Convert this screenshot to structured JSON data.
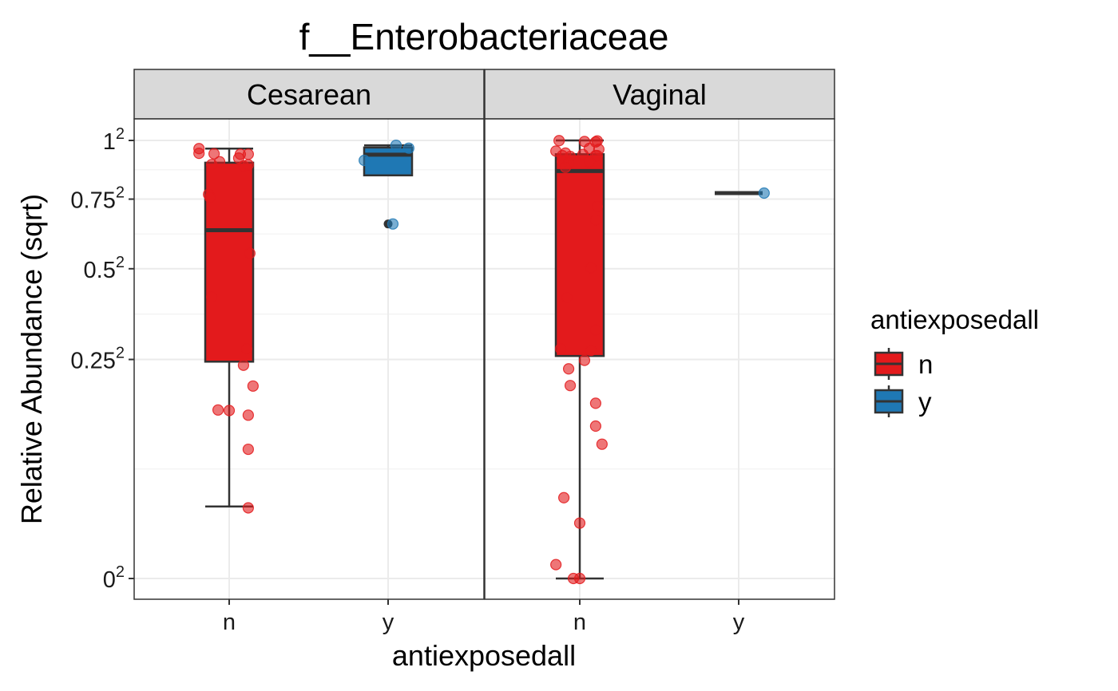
{
  "chart_data": {
    "type": "box",
    "title": "f__Enterobacteriaceae",
    "xlabel": "antiexposedall",
    "ylabel": "Relative Abundance (sqrt)",
    "y_scale": "sqrt",
    "y_ticks": [
      {
        "value": 0,
        "base": "0",
        "exp": "2"
      },
      {
        "value": 0.25,
        "base": "0.25",
        "exp": "2"
      },
      {
        "value": 0.5,
        "base": "0.5",
        "exp": "2"
      },
      {
        "value": 0.75,
        "base": "0.75",
        "exp": "2"
      },
      {
        "value": 1,
        "base": "1",
        "exp": "2"
      }
    ],
    "categories": [
      "n",
      "y"
    ],
    "legend": {
      "title": "antiexposedall",
      "position": "right",
      "entries": [
        {
          "label": "n",
          "color": "#E31A1C"
        },
        {
          "label": "y",
          "color": "#1F78B4"
        }
      ]
    },
    "panels": [
      {
        "strip": "Cesarean",
        "boxes": [
          {
            "category": "n",
            "color": "#E31A1C",
            "whisker_low": 0.027,
            "q1": 0.245,
            "median": 0.632,
            "q3": 0.901,
            "whisker_high": 0.963,
            "outliers": [],
            "points": [
              {
                "dx": -0.19,
                "y": 0.963
              },
              {
                "dx": -0.19,
                "y": 0.942
              },
              {
                "dx": -0.095,
                "y": 0.94
              },
              {
                "dx": -0.06,
                "y": 0.905
              },
              {
                "dx": -0.11,
                "y": 0.893
              },
              {
                "dx": -0.13,
                "y": 0.769
              },
              {
                "dx": -0.12,
                "y": 0.757
              },
              {
                "dx": -0.11,
                "y": 0.413
              },
              {
                "dx": -0.07,
                "y": 0.148
              },
              {
                "dx": 0.0,
                "y": 0.147
              },
              {
                "dx": 0.07,
                "y": 0.938
              },
              {
                "dx": 0.12,
                "y": 0.938
              },
              {
                "dx": 0.06,
                "y": 0.921
              },
              {
                "dx": 0.09,
                "y": 0.887
              },
              {
                "dx": 0.12,
                "y": 0.892
              },
              {
                "dx": 0.13,
                "y": 0.551
              },
              {
                "dx": 0.11,
                "y": 0.275
              },
              {
                "dx": 0.09,
                "y": 0.237
              },
              {
                "dx": 0.15,
                "y": 0.193
              },
              {
                "dx": 0.12,
                "y": 0.139
              },
              {
                "dx": 0.12,
                "y": 0.087
              },
              {
                "dx": 0.12,
                "y": 0.026
              }
            ]
          },
          {
            "category": "y",
            "color": "#1F78B4",
            "whisker_low": 0.847,
            "q1": 0.847,
            "median": 0.936,
            "q3": 0.968,
            "whisker_high": 0.978,
            "outliers": [
              0.655
            ],
            "points": [
              {
                "dx": -0.15,
                "y": 0.911
              },
              {
                "dx": 0.05,
                "y": 0.978
              },
              {
                "dx": 0.13,
                "y": 0.965
              },
              {
                "dx": 0.03,
                "y": 0.655
              }
            ]
          }
        ]
      },
      {
        "strip": "Vaginal",
        "boxes": [
          {
            "category": "n",
            "color": "#E31A1C",
            "whisker_low": 0.0,
            "q1": 0.258,
            "median": 0.865,
            "q3": 0.938,
            "whisker_high": 1.0,
            "outliers": [],
            "points": [
              {
                "dx": -0.13,
                "y": 0.999
              },
              {
                "dx": -0.15,
                "y": 0.952
              },
              {
                "dx": -0.09,
                "y": 0.943
              },
              {
                "dx": -0.11,
                "y": 0.932
              },
              {
                "dx": -0.06,
                "y": 0.928
              },
              {
                "dx": -0.11,
                "y": 0.906
              },
              {
                "dx": -0.07,
                "y": 0.9
              },
              {
                "dx": -0.09,
                "y": 0.881
              },
              {
                "dx": -0.08,
                "y": 0.411
              },
              {
                "dx": -0.12,
                "y": 0.275
              },
              {
                "dx": -0.07,
                "y": 0.229
              },
              {
                "dx": -0.06,
                "y": 0.194
              },
              {
                "dx": -0.1,
                "y": 0.034
              },
              {
                "dx": -0.15,
                "y": 0.001
              },
              {
                "dx": -0.04,
                "y": 0.0
              },
              {
                "dx": 0.0,
                "y": 0.016
              },
              {
                "dx": 0.0,
                "y": 0.0
              },
              {
                "dx": 0.03,
                "y": 0.995
              },
              {
                "dx": 0.1,
                "y": 0.993
              },
              {
                "dx": 0.11,
                "y": 0.998
              },
              {
                "dx": 0.06,
                "y": 0.964
              },
              {
                "dx": 0.12,
                "y": 0.96
              },
              {
                "dx": 0.02,
                "y": 0.937
              },
              {
                "dx": 0.1,
                "y": 0.932
              },
              {
                "dx": 0.11,
                "y": 0.932
              },
              {
                "dx": 0.06,
                "y": 0.905
              },
              {
                "dx": 0.11,
                "y": 0.721
              },
              {
                "dx": 0.1,
                "y": 0.67
              },
              {
                "dx": 0.07,
                "y": 0.503
              },
              {
                "dx": 0.1,
                "y": 0.322
              },
              {
                "dx": 0.07,
                "y": 0.271
              },
              {
                "dx": 0.03,
                "y": 0.248
              },
              {
                "dx": 0.1,
                "y": 0.16
              },
              {
                "dx": 0.1,
                "y": 0.121
              },
              {
                "dx": 0.14,
                "y": 0.094
              }
            ]
          },
          {
            "category": "y",
            "color": "#1F78B4",
            "whisker_low": 0.774,
            "q1": 0.774,
            "median": 0.774,
            "q3": 0.774,
            "whisker_high": 0.774,
            "outliers": [],
            "points": [
              {
                "dx": 0.16,
                "y": 0.774
              }
            ]
          }
        ]
      }
    ]
  }
}
